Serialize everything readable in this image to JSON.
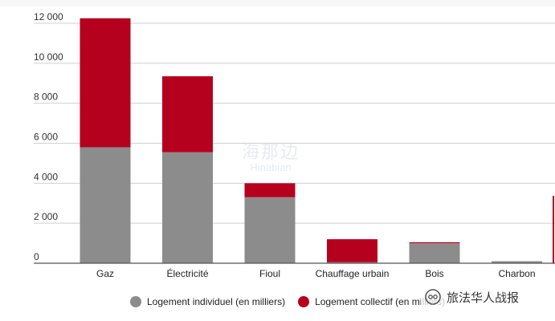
{
  "chart_data": {
    "type": "bar",
    "stacked": true,
    "categories": [
      "Gaz",
      "Électricité",
      "Fioul",
      "Chauffage urbain",
      "Bois",
      "Charbon"
    ],
    "series": [
      {
        "name": "Logement individuel (en milliers)",
        "color": "#8c8c8c",
        "values": [
          5800,
          5550,
          3300,
          50,
          1000,
          100
        ]
      },
      {
        "name": "Logement collectif (en milliers)",
        "color": "#b5001e",
        "values": [
          6450,
          3800,
          700,
          1150,
          50,
          0
        ]
      }
    ],
    "yticks": [
      "0",
      "2 000",
      "4 000",
      "6 000",
      "8 000",
      "10 000",
      "12 000"
    ],
    "ytick_values": [
      0,
      2000,
      4000,
      6000,
      8000,
      10000,
      12000
    ],
    "ylim": [
      0,
      12000
    ],
    "grid": true,
    "legend_position": "bottom"
  },
  "watermark": {
    "account_label": "旅法华人战报",
    "center_text_cn": "海那边",
    "center_text_en": "Hinabian"
  }
}
